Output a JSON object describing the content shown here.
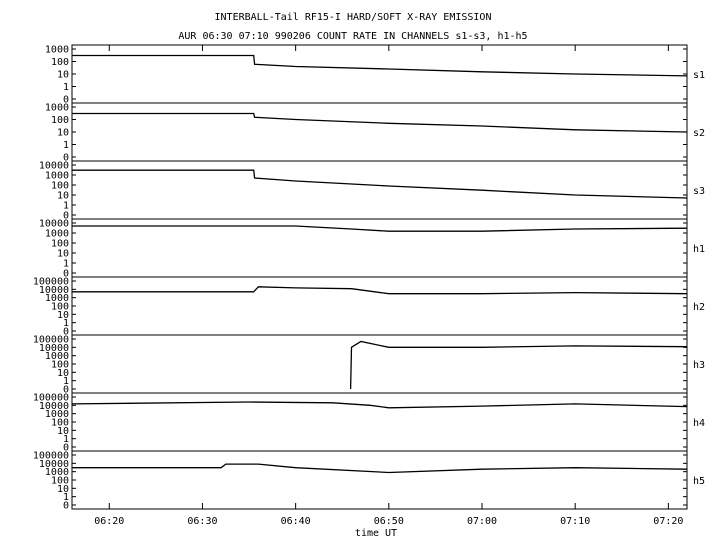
{
  "chart_data": {
    "type": "line",
    "title": "INTERBALL-Tail RF15-I HARD/SOFT X-RAY EMISSION",
    "subtitle": "AUR 06:30 07:10 990206  COUNT RATE IN CHANNELS s1-s3, h1-h5",
    "xlabel": "time UT",
    "x_ticks": [
      "06:20",
      "06:30",
      "06:40",
      "06:50",
      "07:00",
      "07:10",
      "07:20"
    ],
    "xlim": [
      "06:16",
      "07:22"
    ],
    "yscale": "log",
    "grid": false,
    "panels": [
      {
        "name": "s1",
        "y_ticks": [
          "1000",
          "100",
          "10",
          "1",
          "0"
        ],
        "ylim": [
          0,
          1000
        ],
        "x": [
          "06:16",
          "06:35.5",
          "06:35.6",
          "06:40",
          "06:50",
          "07:00",
          "07:10",
          "07:22"
        ],
        "values": [
          300,
          300,
          60,
          40,
          25,
          15,
          10,
          7
        ]
      },
      {
        "name": "s2",
        "y_ticks": [
          "1000",
          "100",
          "10",
          "1",
          "0"
        ],
        "ylim": [
          0,
          1000
        ],
        "x": [
          "06:16",
          "06:35.5",
          "06:35.6",
          "06:40",
          "06:50",
          "07:00",
          "07:10",
          "07:22"
        ],
        "values": [
          300,
          300,
          150,
          100,
          50,
          30,
          15,
          10
        ]
      },
      {
        "name": "s3",
        "y_ticks": [
          "10000",
          "1000",
          "100",
          "10",
          "1",
          "0"
        ],
        "ylim": [
          0,
          10000
        ],
        "x": [
          "06:16",
          "06:35.5",
          "06:35.6",
          "06:40",
          "06:50",
          "07:00",
          "07:10",
          "07:22"
        ],
        "values": [
          3000,
          3000,
          500,
          250,
          80,
          30,
          10,
          5
        ]
      },
      {
        "name": "h1",
        "y_ticks": [
          "10000",
          "1000",
          "100",
          "10",
          "1",
          "0"
        ],
        "ylim": [
          0,
          10000
        ],
        "x": [
          "06:16",
          "06:40",
          "06:46",
          "06:50",
          "07:00",
          "07:10",
          "07:22"
        ],
        "values": [
          5000,
          5000,
          2500,
          1500,
          1500,
          2500,
          3000
        ]
      },
      {
        "name": "h2",
        "y_ticks": [
          "100000",
          "10000",
          "1000",
          "100",
          "10",
          "1",
          "0"
        ],
        "ylim": [
          0,
          100000
        ],
        "x": [
          "06:16",
          "06:32",
          "06:35.5",
          "06:36",
          "06:40",
          "06:46",
          "06:48",
          "06:50",
          "07:00",
          "07:10",
          "07:22"
        ],
        "values": [
          5000,
          5000,
          5000,
          20000,
          15000,
          12000,
          6000,
          3000,
          3000,
          4000,
          3000
        ]
      },
      {
        "name": "h3",
        "y_ticks": [
          "100000",
          "10000",
          "1000",
          "100",
          "10",
          "1",
          "0"
        ],
        "ylim": [
          0,
          100000
        ],
        "x": [
          "06:45.9",
          "06:46",
          "06:47",
          "06:50",
          "07:00",
          "07:10",
          "07:22"
        ],
        "values": [
          0,
          10000,
          50000,
          10000,
          10000,
          15000,
          12000
        ]
      },
      {
        "name": "h4",
        "y_ticks": [
          "100000",
          "10000",
          "1000",
          "100",
          "10",
          "1",
          "0"
        ],
        "ylim": [
          0,
          100000
        ],
        "x": [
          "06:16",
          "06:35",
          "06:44",
          "06:48",
          "06:50",
          "07:00",
          "07:10",
          "07:22"
        ],
        "values": [
          15000,
          25000,
          20000,
          10000,
          5000,
          8000,
          15000,
          7000
        ]
      },
      {
        "name": "h5",
        "y_ticks": [
          "100000",
          "10000",
          "1000",
          "100",
          "10",
          "1",
          "0"
        ],
        "ylim": [
          0,
          100000
        ],
        "x": [
          "06:16",
          "06:32",
          "06:32.5",
          "06:36",
          "06:40",
          "06:50",
          "07:00",
          "07:10",
          "07:22"
        ],
        "values": [
          3000,
          3000,
          8000,
          8000,
          3000,
          800,
          2000,
          3000,
          2000
        ]
      }
    ]
  }
}
